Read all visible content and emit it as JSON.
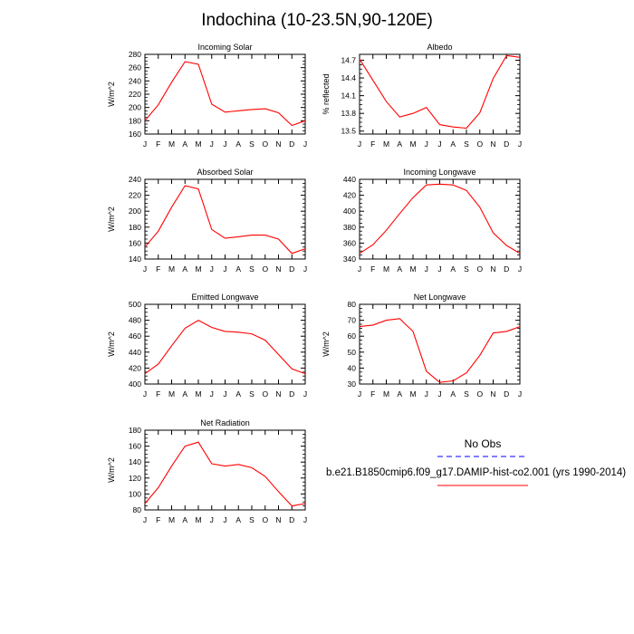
{
  "figure": {
    "title": "Indochina (10-23.5N,90-120E)",
    "legend": {
      "entries": [
        {
          "label": "No Obs",
          "color": "#0000ff",
          "dashed": true
        },
        {
          "label": "b.e21.B1850cmip6.f09_g17.DAMIP-hist-co2.001 (yrs 1990-2014)",
          "color": "#ff0000",
          "dashed": false
        }
      ]
    },
    "colors": {
      "series": "#ff0000",
      "axis": "#000000"
    }
  },
  "chart_data": [
    {
      "type": "line",
      "title": "Incoming Solar",
      "ylabel": "W/m^2",
      "categories": [
        "J",
        "F",
        "M",
        "A",
        "M",
        "J",
        "J",
        "A",
        "S",
        "O",
        "N",
        "D",
        "J"
      ],
      "ylim": [
        160,
        280
      ],
      "yticks": [
        160,
        180,
        200,
        220,
        240,
        260,
        280
      ],
      "ytick_labels": [
        "160",
        "180",
        "200",
        "220",
        "240",
        "260",
        "280"
      ],
      "values": [
        180,
        204,
        238,
        269,
        265,
        205,
        193,
        195,
        197,
        198,
        192,
        173,
        180
      ]
    },
    {
      "type": "line",
      "title": "Albedo",
      "ylabel": "% reflected",
      "categories": [
        "J",
        "F",
        "M",
        "A",
        "M",
        "J",
        "J",
        "A",
        "S",
        "O",
        "N",
        "D",
        "J"
      ],
      "ylim": [
        13.45,
        14.8
      ],
      "yticks": [
        13.5,
        13.8,
        14.1,
        14.4,
        14.7
      ],
      "ytick_labels": [
        "13.5",
        "13.8",
        "14.1",
        "14.4",
        "14.7"
      ],
      "values": [
        14.72,
        14.36,
        14.0,
        13.74,
        13.8,
        13.9,
        13.61,
        13.57,
        13.55,
        13.81,
        14.39,
        14.78,
        14.75
      ]
    },
    {
      "type": "line",
      "title": "Absorbed Solar",
      "ylabel": "W/m^2",
      "categories": [
        "J",
        "F",
        "M",
        "A",
        "M",
        "J",
        "J",
        "A",
        "S",
        "O",
        "N",
        "D",
        "J"
      ],
      "ylim": [
        140,
        240
      ],
      "yticks": [
        140,
        160,
        180,
        200,
        220,
        240
      ],
      "ytick_labels": [
        "140",
        "160",
        "180",
        "200",
        "220",
        "240"
      ],
      "values": [
        155,
        175,
        205,
        232,
        228,
        177,
        166,
        168,
        170,
        170,
        165,
        147,
        153
      ]
    },
    {
      "type": "line",
      "title": "Incoming Longwave",
      "ylabel": "",
      "categories": [
        "J",
        "F",
        "M",
        "A",
        "M",
        "J",
        "J",
        "A",
        "S",
        "O",
        "N",
        "D",
        "J"
      ],
      "ylim": [
        340,
        440
      ],
      "yticks": [
        340,
        360,
        380,
        400,
        420,
        440
      ],
      "ytick_labels": [
        "340",
        "360",
        "380",
        "400",
        "420",
        "440"
      ],
      "values": [
        347,
        358,
        376,
        397,
        417,
        433,
        434,
        433,
        426,
        405,
        373,
        357,
        347
      ]
    },
    {
      "type": "line",
      "title": "Emitted Longwave",
      "ylabel": "W/m^2",
      "categories": [
        "J",
        "F",
        "M",
        "A",
        "M",
        "J",
        "J",
        "A",
        "S",
        "O",
        "N",
        "D",
        "J"
      ],
      "ylim": [
        400,
        500
      ],
      "yticks": [
        400,
        420,
        440,
        460,
        480,
        500
      ],
      "ytick_labels": [
        "400",
        "420",
        "440",
        "460",
        "480",
        "500"
      ],
      "values": [
        413,
        425,
        448,
        470,
        480,
        471,
        466,
        465,
        463,
        455,
        437,
        419,
        413
      ]
    },
    {
      "type": "line",
      "title": "Net Longwave",
      "ylabel": "W/m^2",
      "categories": [
        "J",
        "F",
        "M",
        "A",
        "M",
        "J",
        "J",
        "A",
        "S",
        "O",
        "N",
        "D",
        "J"
      ],
      "ylim": [
        30,
        80
      ],
      "yticks": [
        30,
        40,
        50,
        60,
        70,
        80
      ],
      "ytick_labels": [
        "30",
        "40",
        "50",
        "60",
        "70",
        "80"
      ],
      "values": [
        66,
        67,
        70,
        71,
        63,
        38,
        31,
        32,
        37,
        48,
        62,
        63,
        66
      ]
    },
    {
      "type": "line",
      "title": "Net Radiation",
      "ylabel": "W/m^2",
      "categories": [
        "J",
        "F",
        "M",
        "A",
        "M",
        "J",
        "J",
        "A",
        "S",
        "O",
        "N",
        "D",
        "J"
      ],
      "ylim": [
        80,
        180
      ],
      "yticks": [
        80,
        100,
        120,
        140,
        160,
        180
      ],
      "ytick_labels": [
        "80",
        "100",
        "120",
        "140",
        "160",
        "180"
      ],
      "values": [
        88,
        108,
        135,
        160,
        165,
        138,
        135,
        137,
        133,
        122,
        103,
        85,
        88
      ]
    }
  ]
}
